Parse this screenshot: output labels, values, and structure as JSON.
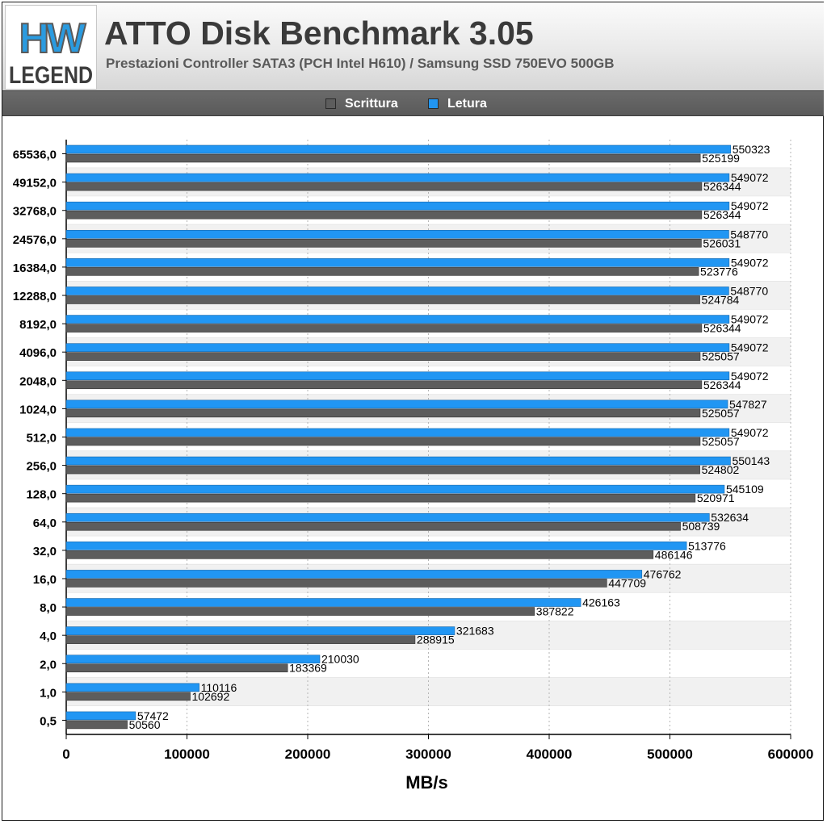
{
  "header": {
    "logo_text_top": "HW",
    "logo_text_bottom": "LEGEND",
    "title": "ATTO Disk Benchmark 3.05",
    "subtitle": "Prestazioni Controller SATA3 (PCH Intel H610) / Samsung SSD 750EVO 500GB"
  },
  "colors": {
    "write": "#5d5d5d",
    "read": "#2196f3",
    "header_bar": "#5f5f5f"
  },
  "chart_data": {
    "type": "bar",
    "orientation": "horizontal",
    "title": "",
    "xlabel": "MB/s",
    "ylabel": "",
    "xlim": [
      0,
      600000
    ],
    "xticks": [
      "0",
      "100000",
      "200000",
      "300000",
      "400000",
      "500000",
      "600000"
    ],
    "grid": "vertical dashed",
    "legend_position": "top",
    "categories": [
      "65536,0",
      "49152,0",
      "32768,0",
      "24576,0",
      "16384,0",
      "12288,0",
      "8192,0",
      "4096,0",
      "2048,0",
      "1024,0",
      "512,0",
      "256,0",
      "128,0",
      "64,0",
      "32,0",
      "16,0",
      "8,0",
      "4,0",
      "2,0",
      "1,0",
      "0,5"
    ],
    "series": [
      {
        "name": "Scrittura",
        "color": "#5d5d5d",
        "values": [
          525199,
          526344,
          526344,
          526031,
          523776,
          524784,
          526344,
          525057,
          526344,
          525057,
          525057,
          524802,
          520971,
          508739,
          486146,
          447709,
          387822,
          288915,
          183369,
          102692,
          50560
        ]
      },
      {
        "name": "Letura",
        "color": "#2196f3",
        "values": [
          550323,
          549072,
          549072,
          548770,
          549072,
          548770,
          549072,
          549072,
          549072,
          547827,
          549072,
          550143,
          545109,
          532634,
          513776,
          476762,
          426163,
          321683,
          210030,
          110116,
          57472
        ]
      }
    ]
  }
}
